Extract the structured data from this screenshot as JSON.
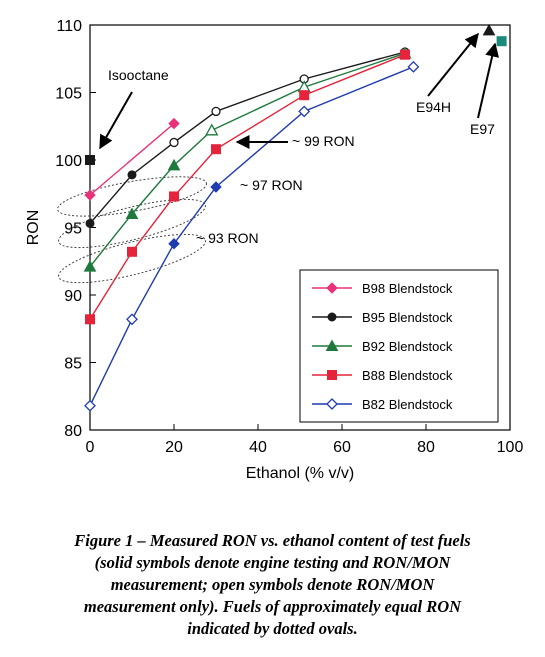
{
  "chart_data": {
    "type": "line",
    "xlabel": "Ethanol (% v/v)",
    "ylabel": "RON",
    "xlim": [
      0,
      100
    ],
    "ylim": [
      80,
      110
    ],
    "xticks": [
      "0",
      "20",
      "40",
      "60",
      "80",
      "100"
    ],
    "yticks": [
      "80",
      "85",
      "90",
      "95",
      "100",
      "105",
      "110"
    ],
    "grid": false,
    "legend_position": "lower-right",
    "series": [
      {
        "name": "B98 Blendstock",
        "color": "#e8327a",
        "marker": "diamond",
        "fill": "solid",
        "x": [
          0,
          20
        ],
        "y": [
          97.4,
          102.7
        ]
      },
      {
        "name": "B95 Blendstock",
        "color": "#1a1a1a",
        "marker": "circle",
        "fill": "mixed",
        "x": [
          0,
          10,
          20,
          30,
          51,
          75
        ],
        "y": [
          95.3,
          98.9,
          101.3,
          103.6,
          106.0,
          108.0
        ],
        "open": [
          false,
          false,
          true,
          true,
          true,
          true
        ]
      },
      {
        "name": "B92 Blendstock",
        "color": "#1e7a3c",
        "marker": "triangle",
        "fill": "mixed",
        "x": [
          0,
          10,
          20,
          29,
          51,
          75
        ],
        "y": [
          92.1,
          96.0,
          99.6,
          102.2,
          105.4,
          107.9
        ],
        "open": [
          false,
          false,
          false,
          true,
          true,
          true
        ]
      },
      {
        "name": "B88 Blendstock",
        "color": "#e5233a",
        "marker": "square",
        "fill": "solid",
        "x": [
          0,
          10,
          20,
          30,
          51,
          75
        ],
        "y": [
          88.2,
          93.2,
          97.3,
          100.8,
          104.8,
          107.8
        ]
      },
      {
        "name": "B82 Blendstock",
        "color": "#1f3bb0",
        "marker": "diamond",
        "fill": "open",
        "x": [
          0,
          10,
          20,
          30,
          51,
          77
        ],
        "y": [
          81.8,
          88.2,
          93.8,
          98.0,
          103.6,
          106.9
        ],
        "open": [
          true,
          true,
          false,
          false,
          true,
          true
        ]
      }
    ],
    "extra_points": [
      {
        "label": "Isooctane",
        "x": 0,
        "y": 100,
        "color": "#1a1a1a",
        "marker": "square"
      },
      {
        "label": "E94H",
        "x": 95,
        "y": 109.6,
        "color": "#1a1a1a",
        "marker": "triangle"
      },
      {
        "label": "E97",
        "x": 98,
        "y": 108.8,
        "color": "#1a8a7a",
        "marker": "square"
      }
    ],
    "annotations": {
      "isooctane": "Isooctane",
      "e94h": "E94H",
      "e97": "E97",
      "ron99": "~ 99 RON",
      "ron97": "~ 97 RON",
      "ron93": "~ 93 RON"
    },
    "ovals": [
      {
        "x": 10,
        "y": 97.3,
        "w": 36,
        "h": 2.2,
        "rot": 10
      },
      {
        "x": 10,
        "y": 95.3,
        "w": 36,
        "h": 2.4,
        "rot": 14
      },
      {
        "x": 10,
        "y": 92.7,
        "w": 36,
        "h": 2.4,
        "rot": 14
      }
    ]
  },
  "caption": {
    "line1": "Figure 1 – Measured RON vs. ethanol content of test fuels",
    "line2": "(solid symbols denote engine testing and RON/MON",
    "line3": "measurement; open symbols denote RON/MON",
    "line4": "measurement only).  Fuels of approximately equal RON",
    "line5": "indicated by dotted ovals."
  }
}
